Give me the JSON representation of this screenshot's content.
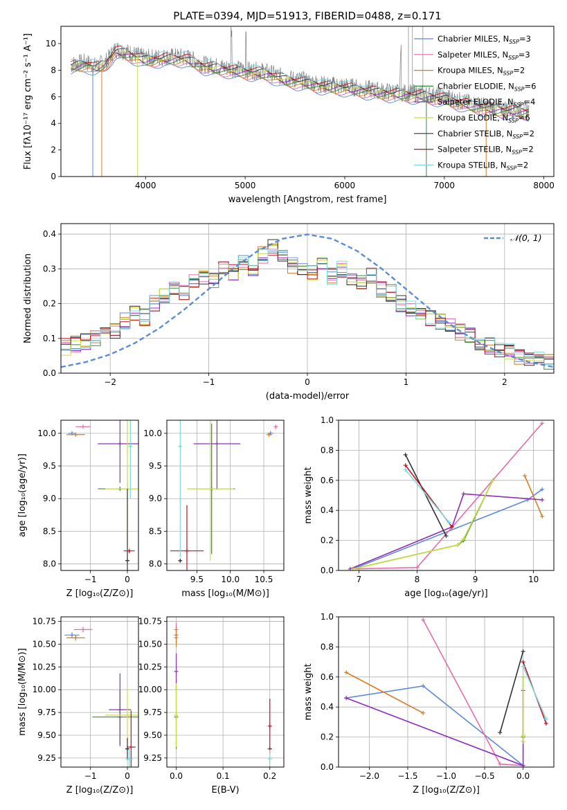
{
  "chart_data": [
    {
      "type": "line",
      "title": "PLATE=0394, MJD=51913, FIBERID=0488, z=0.171",
      "xlabel": "wavelength [Angstrom, rest frame]",
      "ylabel": "Flux [fλ10⁻¹⁷ erg cm⁻² s⁻¹ A⁻¹]",
      "xlim": [
        3150,
        8100
      ],
      "ylim": [
        0,
        11.3
      ],
      "xticks": [
        "4000",
        "5000",
        "6000",
        "7000",
        "8000"
      ],
      "yticks": [
        "0",
        "2",
        "4",
        "6",
        "8",
        "10"
      ],
      "legend_position": "upper-right",
      "series": [
        {
          "name": "Chabrier MILES, N_SSP=3",
          "color": "#5b8ad6"
        },
        {
          "name": "Salpeter MILES, N_SSP=3",
          "color": "#e66ca8"
        },
        {
          "name": "Kroupa MILES, N_SSP=2",
          "color": "#d97b1f"
        },
        {
          "name": "Chabrier ELODIE, N_SSP=6",
          "color": "#3a8a3a"
        },
        {
          "name": "Salpeter ELODIE, N_SSP=4",
          "color": "#8e2dbb"
        },
        {
          "name": "Kroupa ELODIE, N_SSP=6",
          "color": "#c8e03c"
        },
        {
          "name": "Chabrier STELIB, N_SSP=2",
          "color": "#333333"
        },
        {
          "name": "Salpeter STELIB, N_SSP=2",
          "color": "#c0141c"
        },
        {
          "name": "Kroupa STELIB, N_SSP=2",
          "color": "#7fd9e0"
        }
      ],
      "envelope_x": [
        3250,
        3400,
        3500,
        3600,
        3700,
        3800,
        4000,
        4200,
        4400,
        4600,
        4800,
        5000,
        5200,
        5400,
        5600,
        5800,
        6000,
        6200,
        6400,
        6600,
        6800,
        7000,
        7200,
        7400,
        7600,
        7800
      ],
      "envelope_y": [
        8.4,
        8.6,
        8.3,
        8.6,
        9.6,
        9.4,
        8.9,
        9.0,
        9.0,
        8.4,
        8.2,
        8.0,
        7.9,
        7.4,
        7.2,
        6.9,
        6.8,
        6.6,
        6.4,
        6.3,
        6.2,
        6.0,
        5.6,
        5.3,
        5.1,
        5.0
      ],
      "data_color": "#808080"
    },
    {
      "type": "bar",
      "xlabel": "(data-model)/error",
      "ylabel": "Normed distribution",
      "xlim": [
        -2.5,
        2.5
      ],
      "ylim": [
        0,
        0.43
      ],
      "xticks": [
        "−2",
        "−1",
        "0",
        "1",
        "2"
      ],
      "yticks": [
        "0.0",
        "0.1",
        "0.2",
        "0.3",
        "0.4"
      ],
      "legend": "𝒩(0, 1)",
      "legend_position": "upper-right",
      "bin_centers": [
        -2.45,
        -2.35,
        -2.25,
        -2.15,
        -2.05,
        -1.95,
        -1.85,
        -1.75,
        -1.65,
        -1.55,
        -1.45,
        -1.35,
        -1.25,
        -1.15,
        -1.05,
        -0.95,
        -0.85,
        -0.75,
        -0.65,
        -0.55,
        -0.45,
        -0.35,
        -0.25,
        -0.15,
        -0.05,
        0.05,
        0.15,
        0.25,
        0.35,
        0.45,
        0.55,
        0.65,
        0.75,
        0.85,
        0.95,
        1.05,
        1.15,
        1.25,
        1.35,
        1.45,
        1.55,
        1.65,
        1.75,
        1.85,
        1.95,
        2.05,
        2.15,
        2.25,
        2.35,
        2.45
      ],
      "hist_values": [
        0.075,
        0.085,
        0.09,
        0.1,
        0.11,
        0.12,
        0.15,
        0.17,
        0.16,
        0.2,
        0.22,
        0.24,
        0.23,
        0.26,
        0.28,
        0.27,
        0.3,
        0.29,
        0.32,
        0.3,
        0.34,
        0.36,
        0.33,
        0.31,
        0.3,
        0.29,
        0.31,
        0.28,
        0.3,
        0.27,
        0.26,
        0.28,
        0.24,
        0.23,
        0.2,
        0.19,
        0.18,
        0.16,
        0.15,
        0.14,
        0.12,
        0.11,
        0.09,
        0.08,
        0.07,
        0.06,
        0.05,
        0.045,
        0.04,
        0.035
      ],
      "normal_x": [
        -2.5,
        -2.25,
        -2.0,
        -1.75,
        -1.5,
        -1.25,
        -1.0,
        -0.75,
        -0.5,
        -0.25,
        0,
        0.25,
        0.5,
        0.75,
        1.0,
        1.25,
        1.5,
        1.75,
        2.0,
        2.25,
        2.5
      ],
      "normal_y": [
        0.0175,
        0.0317,
        0.054,
        0.0863,
        0.1295,
        0.1826,
        0.242,
        0.3011,
        0.3521,
        0.3867,
        0.3989,
        0.3867,
        0.3521,
        0.3011,
        0.242,
        0.1826,
        0.1295,
        0.0863,
        0.054,
        0.0317,
        0.0175
      ]
    },
    {
      "type": "scatter",
      "xlabel": "Z [log₁₀(Z/Z⊙)]",
      "ylabel": "age  [log₁₀(age/yr)]",
      "xlim": [
        -1.8,
        0.3
      ],
      "ylim": [
        7.9,
        10.2
      ],
      "xticks": [
        "−1",
        "0"
      ],
      "yticks": [
        "8.0",
        "8.5",
        "9.0",
        "9.5",
        "10.0"
      ],
      "points": [
        {
          "x": -1.5,
          "y": 10.0,
          "color": "#5b8ad6"
        },
        {
          "x": -1.2,
          "y": 10.1,
          "color": "#e66ca8"
        },
        {
          "x": -1.4,
          "y": 9.98,
          "color": "#d97b1f"
        },
        {
          "x": -0.2,
          "y": 9.15,
          "color": "#3a8a3a"
        },
        {
          "x": -0.2,
          "y": 9.84,
          "color": "#8e2dbb"
        },
        {
          "x": 0.0,
          "y": 9.15,
          "color": "#c8e03c"
        },
        {
          "x": 0.0,
          "y": 8.05,
          "color": "#333333"
        },
        {
          "x": 0.05,
          "y": 8.2,
          "color": "#c0141c"
        },
        {
          "x": 0.08,
          "y": 9.8,
          "color": "#7fd9e0"
        }
      ]
    },
    {
      "type": "scatter",
      "xlabel": "mass [log₁₀(M/M⊙)]",
      "xlim": [
        9.05,
        10.8
      ],
      "ylim": [
        7.9,
        10.2
      ],
      "xticks": [
        "9.5",
        "10.0",
        "10.5"
      ],
      "yticks": [
        "8.0",
        "8.5",
        "9.0",
        "9.5",
        "10.0"
      ],
      "points": [
        {
          "x": 10.6,
          "y": 10.0,
          "color": "#5b8ad6"
        },
        {
          "x": 10.68,
          "y": 10.1,
          "color": "#e66ca8"
        },
        {
          "x": 10.58,
          "y": 9.98,
          "color": "#d97b1f"
        },
        {
          "x": 9.72,
          "y": 9.15,
          "color": "#3a8a3a"
        },
        {
          "x": 9.8,
          "y": 9.84,
          "color": "#8e2dbb"
        },
        {
          "x": 9.7,
          "y": 9.15,
          "color": "#c8e03c"
        },
        {
          "x": 9.25,
          "y": 8.05,
          "color": "#333333"
        },
        {
          "x": 9.35,
          "y": 8.2,
          "color": "#c0141c"
        },
        {
          "x": 9.25,
          "y": 9.8,
          "color": "#7fd9e0"
        }
      ]
    },
    {
      "type": "line",
      "xlabel": "age  [log₁₀(age/yr)]",
      "ylabel": "mass weight",
      "xlim": [
        6.65,
        10.35
      ],
      "ylim": [
        0,
        1.0
      ],
      "xticks": [
        "7",
        "8",
        "9",
        "10"
      ],
      "yticks": [
        "0.0",
        "0.2",
        "0.4",
        "0.6",
        "0.8",
        "1.0"
      ],
      "series": [
        {
          "name": "Chabrier MILES",
          "color": "#5b8ad6",
          "x": [
            6.9,
            9.9,
            10.15
          ],
          "y": [
            0.01,
            0.47,
            0.54
          ]
        },
        {
          "name": "Salpeter MILES",
          "color": "#e66ca8",
          "x": [
            6.9,
            8.0,
            10.15
          ],
          "y": [
            0.01,
            0.02,
            0.98
          ]
        },
        {
          "name": "Kroupa MILES",
          "color": "#d97b1f",
          "x": [
            9.85,
            10.15
          ],
          "y": [
            0.63,
            0.36
          ]
        },
        {
          "name": "Chabrier ELODIE",
          "color": "#3a8a3a",
          "x": [
            6.9,
            8.7,
            8.8,
            9.3
          ],
          "y": [
            0.01,
            0.17,
            0.2,
            0.6
          ]
        },
        {
          "name": "Salpeter ELODIE",
          "color": "#8e2dbb",
          "x": [
            6.85,
            8.6,
            8.8,
            10.15
          ],
          "y": [
            0.01,
            0.29,
            0.51,
            0.47
          ]
        },
        {
          "name": "Kroupa ELODIE",
          "color": "#c8e03c",
          "x": [
            6.9,
            8.7,
            8.8,
            9.3
          ],
          "y": [
            0.01,
            0.17,
            0.21,
            0.6
          ]
        },
        {
          "name": "Chabrier STELIB",
          "color": "#333333",
          "x": [
            7.8,
            8.5
          ],
          "y": [
            0.77,
            0.23
          ]
        },
        {
          "name": "Salpeter STELIB",
          "color": "#c0141c",
          "x": [
            7.8,
            8.6
          ],
          "y": [
            0.7,
            0.29
          ]
        },
        {
          "name": "Kroupa STELIB",
          "color": "#7fd9e0",
          "x": [
            7.8,
            8.55
          ],
          "y": [
            0.67,
            0.32
          ]
        }
      ]
    },
    {
      "type": "scatter",
      "xlabel": "Z [log₁₀(Z/Z⊙)]",
      "ylabel": "mass [log₁₀(M/M⊙)]",
      "xlim": [
        -1.8,
        0.3
      ],
      "ylim": [
        9.15,
        10.8
      ],
      "xticks": [
        "−1",
        "0"
      ],
      "yticks": [
        "9.25",
        "9.50",
        "9.75",
        "10.00",
        "10.25",
        "10.50",
        "10.75"
      ],
      "points": [
        {
          "x": -1.5,
          "y": 10.6,
          "color": "#5b8ad6"
        },
        {
          "x": -1.2,
          "y": 10.66,
          "color": "#e66ca8"
        },
        {
          "x": -1.4,
          "y": 10.57,
          "color": "#d97b1f"
        },
        {
          "x": -0.2,
          "y": 9.7,
          "color": "#3a8a3a"
        },
        {
          "x": -0.2,
          "y": 9.78,
          "color": "#8e2dbb"
        },
        {
          "x": 0.0,
          "y": 9.72,
          "color": "#c8e03c"
        },
        {
          "x": 0.0,
          "y": 9.35,
          "color": "#333333"
        },
        {
          "x": 0.1,
          "y": 9.37,
          "color": "#c0141c"
        },
        {
          "x": 0.05,
          "y": 9.24,
          "color": "#7fd9e0"
        }
      ]
    },
    {
      "type": "scatter",
      "xlabel": "E(B-V)",
      "xlim": [
        -0.02,
        0.23
      ],
      "ylim": [
        9.15,
        10.8
      ],
      "xticks": [
        "0.0",
        "0.1",
        "0.2"
      ],
      "yticks": [
        "9.25",
        "9.50",
        "9.75",
        "10.00",
        "10.25",
        "10.50",
        "10.75"
      ],
      "points": [
        {
          "x": 0.0,
          "y": 10.6,
          "color": "#5b8ad6"
        },
        {
          "x": 0.0,
          "y": 10.66,
          "color": "#e66ca8"
        },
        {
          "x": 0.0,
          "y": 10.57,
          "color": "#d97b1f"
        },
        {
          "x": 0.0,
          "y": 9.7,
          "color": "#3a8a3a"
        },
        {
          "x": 0.0,
          "y": 10.2,
          "color": "#8e2dbb"
        },
        {
          "x": 0.0,
          "y": 9.72,
          "color": "#c8e03c"
        },
        {
          "x": 0.2,
          "y": 9.35,
          "color": "#333333"
        },
        {
          "x": 0.2,
          "y": 9.6,
          "color": "#c0141c"
        },
        {
          "x": 0.2,
          "y": 9.24,
          "color": "#7fd9e0"
        }
      ]
    },
    {
      "type": "line",
      "xlabel": "Z [log₁₀(Z/Z⊙)]",
      "ylabel": "mass weight",
      "xlim": [
        -2.4,
        0.4
      ],
      "ylim": [
        0,
        1.0
      ],
      "xticks": [
        "−2.0",
        "−1.5",
        "−1.0",
        "−0.5",
        "0.0"
      ],
      "yticks": [
        "0.0",
        "0.2",
        "0.4",
        "0.6",
        "0.8",
        "1.0"
      ],
      "series": [
        {
          "name": "Chabrier MILES",
          "color": "#5b8ad6",
          "x": [
            -2.3,
            -1.3,
            0.0
          ],
          "y": [
            0.46,
            0.54,
            0.01
          ]
        },
        {
          "name": "Salpeter MILES",
          "color": "#e66ca8",
          "x": [
            -1.3,
            -0.3,
            0.0
          ],
          "y": [
            0.98,
            0.02,
            0.01
          ]
        },
        {
          "name": "Kroupa MILES",
          "color": "#d97b1f",
          "x": [
            -2.3,
            -1.3
          ],
          "y": [
            0.63,
            0.36
          ]
        },
        {
          "name": "Chabrier ELODIE",
          "color": "#3a8a3a",
          "x": [
            0.0,
            0.0,
            0.0
          ],
          "y": [
            0.17,
            0.2,
            0.6
          ]
        },
        {
          "name": "Salpeter ELODIE",
          "color": "#8e2dbb",
          "x": [
            -2.3,
            0.0,
            0.0
          ],
          "y": [
            0.46,
            0.01,
            0.51
          ]
        },
        {
          "name": "Kroupa ELODIE",
          "color": "#c8e03c",
          "x": [
            0.0,
            0.0,
            0.0
          ],
          "y": [
            0.17,
            0.21,
            0.6
          ]
        },
        {
          "name": "Chabrier STELIB",
          "color": "#333333",
          "x": [
            -0.3,
            0.0
          ],
          "y": [
            0.23,
            0.77
          ]
        },
        {
          "name": "Salpeter STELIB",
          "color": "#c0141c",
          "x": [
            0.0,
            0.3
          ],
          "y": [
            0.7,
            0.29
          ]
        },
        {
          "name": "Kroupa STELIB",
          "color": "#7fd9e0",
          "x": [
            0.0,
            0.3
          ],
          "y": [
            0.67,
            0.32
          ]
        }
      ]
    }
  ]
}
